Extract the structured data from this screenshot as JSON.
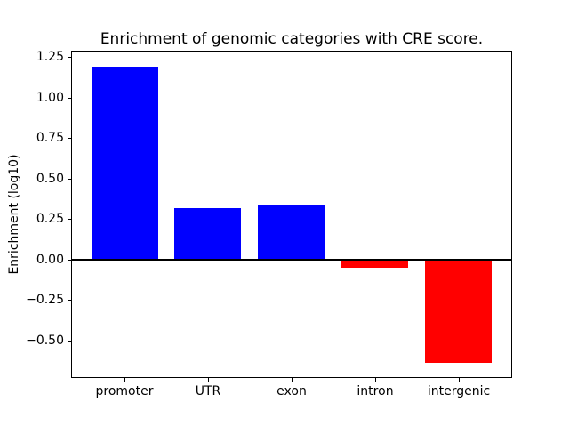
{
  "chart_data": {
    "type": "bar",
    "title": "Enrichment of genomic categories with CRE score.",
    "ylabel": "Enrichment (log10)",
    "xlabel": "",
    "categories": [
      "promoter",
      "UTR",
      "exon",
      "intron",
      "intergenic"
    ],
    "values": [
      1.19,
      0.32,
      0.34,
      -0.05,
      -0.64
    ],
    "positive_color": "#0000ff",
    "negative_color": "#ff0000",
    "axis_color": "#000000",
    "background_color": "#ffffff",
    "bar_width_fraction": 0.8,
    "ylim": [
      -0.731,
      1.291
    ],
    "xlim": [
      -0.64,
      4.64
    ],
    "yticks": [
      1.25,
      1.0,
      0.75,
      0.5,
      0.25,
      0.0,
      -0.25,
      -0.5
    ],
    "ytick_labels": [
      "1.25",
      "1.00",
      "0.75",
      "0.50",
      "0.25",
      "0.00",
      "−0.25",
      "−0.50"
    ],
    "grid": false,
    "legend": null,
    "zero_line": true,
    "zero_line_width": 2
  }
}
